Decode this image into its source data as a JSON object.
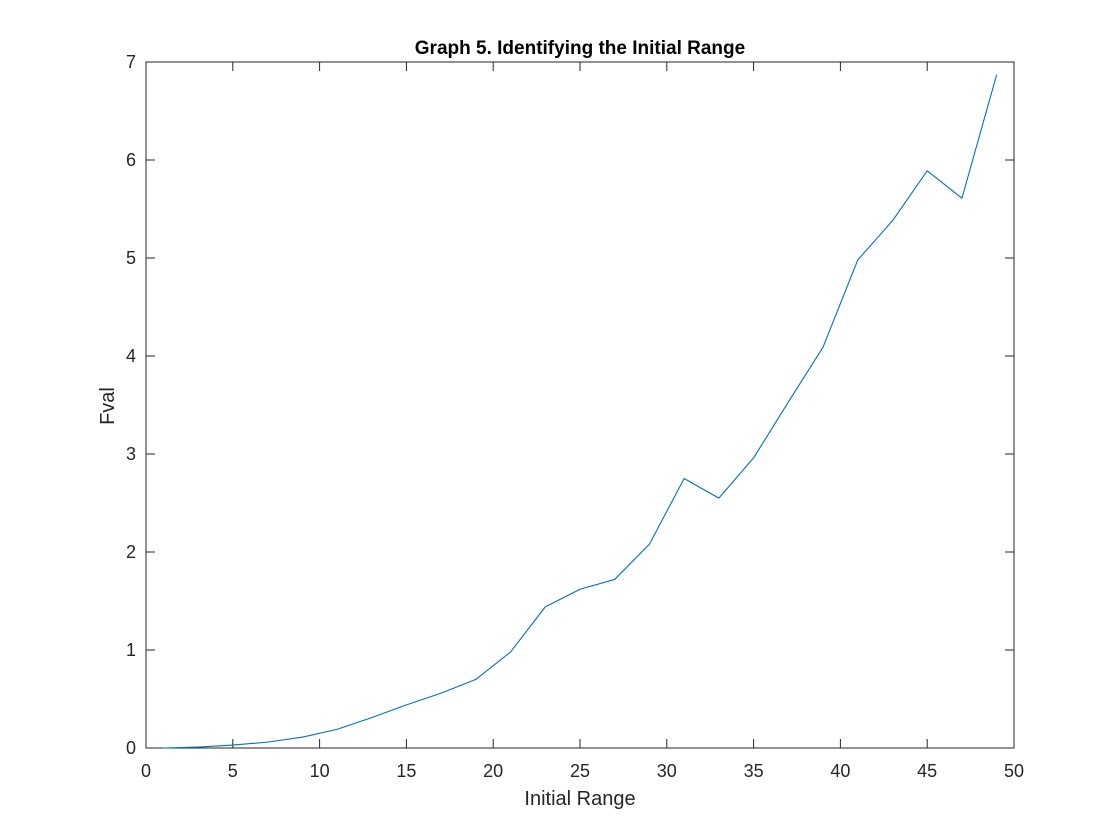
{
  "chart_data": {
    "type": "line",
    "title": "Graph 5. Identifying the Initial Range",
    "xlabel": "Initial Range",
    "ylabel": "Fval",
    "xlim": [
      0,
      50
    ],
    "ylim": [
      0,
      7
    ],
    "x_ticks": [
      "0",
      "5",
      "10",
      "15",
      "20",
      "25",
      "30",
      "35",
      "40",
      "45",
      "50"
    ],
    "y_ticks": [
      "0",
      "1",
      "2",
      "3",
      "4",
      "5",
      "6",
      "7"
    ],
    "grid": false,
    "series": [
      {
        "color": "#0072BD",
        "x": [
          1,
          3,
          5,
          7,
          9,
          11,
          13,
          15,
          17,
          19,
          21,
          23,
          25,
          27,
          29,
          31,
          33,
          35,
          37,
          39,
          41,
          43,
          45,
          47,
          49
        ],
        "y": [
          0.0,
          0.01,
          0.03,
          0.06,
          0.11,
          0.19,
          0.31,
          0.44,
          0.56,
          0.7,
          0.98,
          1.44,
          1.62,
          1.72,
          2.08,
          2.75,
          2.55,
          2.96,
          3.53,
          4.09,
          4.98,
          5.38,
          5.89,
          5.61,
          6.87
        ]
      }
    ]
  }
}
